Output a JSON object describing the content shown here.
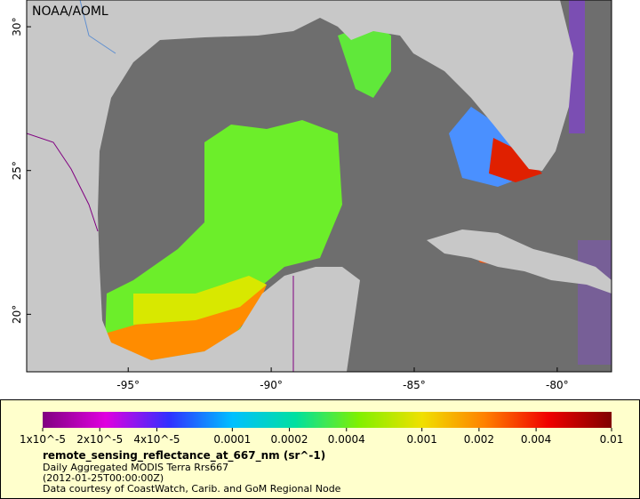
{
  "title": "NOAA/AOML",
  "map": {
    "xlim": [
      -98.55,
      -78.1
    ],
    "ylim": [
      18.0,
      30.93
    ],
    "xticks": [
      {
        "value": -95,
        "label": "-95°"
      },
      {
        "value": -90,
        "label": "-90°"
      },
      {
        "value": -85,
        "label": "-85°"
      },
      {
        "value": -80,
        "label": "-80°"
      }
    ],
    "yticks": [
      {
        "value": 20,
        "label": "20°"
      },
      {
        "value": 25,
        "label": "25°"
      },
      {
        "value": 30,
        "label": "30°"
      }
    ]
  },
  "colorbar": {
    "scale": "log",
    "range": [
      1e-05,
      0.01
    ],
    "colors": [
      "#800080",
      "#e000e0",
      "#3030ff",
      "#00c0ff",
      "#00e0a0",
      "#80f000",
      "#f0e000",
      "#ff8000",
      "#f00000",
      "#800000"
    ],
    "ticks": [
      {
        "value": 1e-05,
        "label": "1x10^-5"
      },
      {
        "value": 2e-05,
        "label": "2x10^-5"
      },
      {
        "value": 4e-05,
        "label": "4x10^-5"
      },
      0.0001,
      0.0002,
      0.0004,
      0.001,
      0.002,
      0.004,
      0.01
    ]
  },
  "legend": {
    "variable": "remote_sensing_reflectance_at_667_nm (sr^-1)",
    "lines": [
      "Daily Aggregated MODIS Terra Rrs667",
      "(2012-01-25T00:00:00Z)",
      "Data courtesy of CoastWatch, Carib. and GoM Regional Node"
    ]
  }
}
